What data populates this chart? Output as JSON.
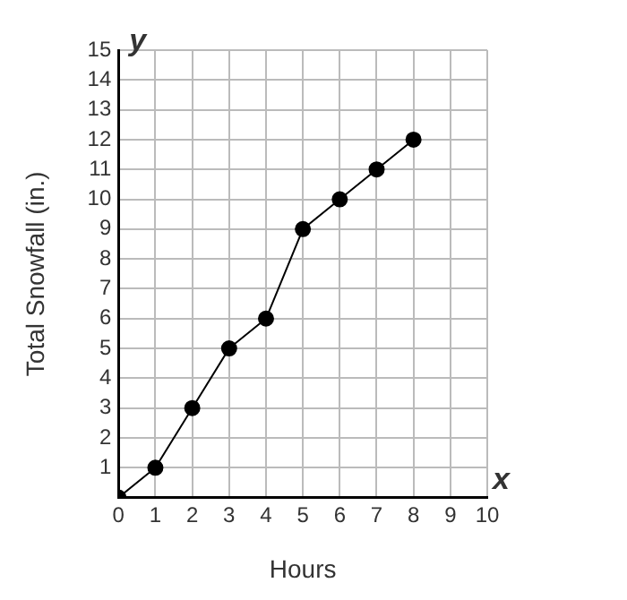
{
  "chart_data": {
    "type": "line",
    "xlabel": "Hours",
    "ylabel": "Total Snowfall (in.)",
    "annotations": [
      "x",
      "y"
    ],
    "x": [
      0,
      1,
      2,
      3,
      4,
      5,
      6,
      7,
      8
    ],
    "series": [
      {
        "color": "#000000",
        "values": [
          0,
          1,
          3,
          5,
          6,
          9,
          10,
          11,
          12
        ]
      }
    ],
    "xlim": [
      0,
      10
    ],
    "xticks": [
      0,
      1,
      2,
      3,
      4,
      5,
      6,
      7,
      8,
      9,
      10
    ],
    "ylim": [
      0,
      15
    ],
    "yticks": [
      1,
      2,
      3,
      4,
      5,
      6,
      7,
      8,
      9,
      10,
      11,
      12,
      13,
      14,
      15
    ],
    "grid": true,
    "legend": false,
    "marker": "circle",
    "line_style": "solid"
  }
}
